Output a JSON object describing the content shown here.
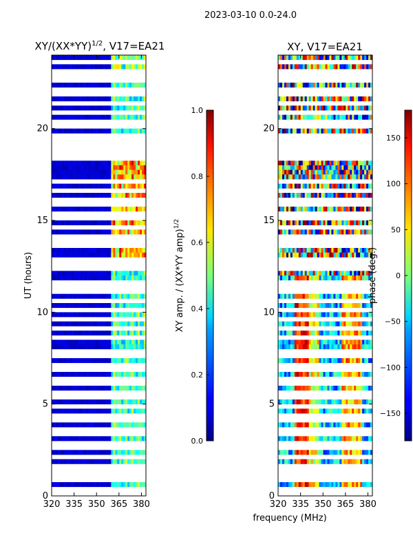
{
  "suptitle": "2023-03-10 0.0-24.0",
  "chart_data": [
    {
      "type": "heatmap",
      "title": "XY/(XX*YY)^{1/2}, V17=EA21",
      "title_main": "XY/(XX*YY)",
      "title_sup": "1/2",
      "title_tail": ", V17=EA21",
      "xlabel": "",
      "ylabel": "UT (hours)",
      "xlim": [
        320,
        383
      ],
      "ylim": [
        0,
        24
      ],
      "xticks": [
        320,
        335,
        350,
        365,
        380
      ],
      "yticks": [
        0,
        5,
        10,
        15,
        20
      ],
      "colormap": "jet",
      "bright_band_MHz": [
        360,
        383
      ],
      "colorbar": {
        "label": "XY amp. / (XX*YY amp)^{1/2}",
        "label_main": "XY amp. / (XX*YY amp)",
        "label_sup": "1/2",
        "range": [
          0.0,
          1.0
        ],
        "ticks": [
          "0.0",
          "0.2",
          "0.4",
          "0.6",
          "0.8",
          "1.0"
        ]
      }
    },
    {
      "type": "heatmap",
      "title": "XY, V17=EA21",
      "xlabel": "frequency (MHz)",
      "ylabel": "",
      "xlim": [
        320,
        383
      ],
      "ylim": [
        0,
        24
      ],
      "xticks": [
        320,
        335,
        350,
        365,
        380
      ],
      "yticks": [
        0,
        5,
        10,
        15,
        20
      ],
      "colormap": "jet",
      "colorbar": {
        "label": "phase (deg.)",
        "range": [
          -180,
          180
        ],
        "ticks": [
          "150",
          "100",
          "50",
          "0",
          "−50",
          "−100",
          "−150"
        ],
        "tick_values": [
          150,
          100,
          50,
          0,
          -50,
          -100,
          -150
        ]
      }
    }
  ],
  "flagged_hours": [
    0.2,
    0.45,
    0.75,
    1.1,
    1.3,
    1.5,
    2.1,
    2.5,
    2.85,
    3.3,
    3.7,
    4.05,
    4.45,
    4.8,
    5.25,
    5.55,
    6.0,
    6.4,
    6.75,
    7.1,
    7.6,
    7.95,
    8.5,
    9.0,
    9.6,
    10.2,
    10.55,
    11.2,
    11.45,
    11.7,
    12.25,
    12.55,
    12.9,
    13.5,
    13.85,
    14.2,
    14.6,
    15.0,
    15.4,
    15.8,
    16.2,
    16.6,
    17.0,
    18.45,
    18.7,
    18.85,
    19.25,
    19.6,
    20.0,
    20.3,
    20.9,
    21.35,
    21.75,
    22.2,
    22.5,
    22.9,
    23.2,
    23.5
  ],
  "flagged_band_hours": [
    18.5,
    19.1
  ]
}
